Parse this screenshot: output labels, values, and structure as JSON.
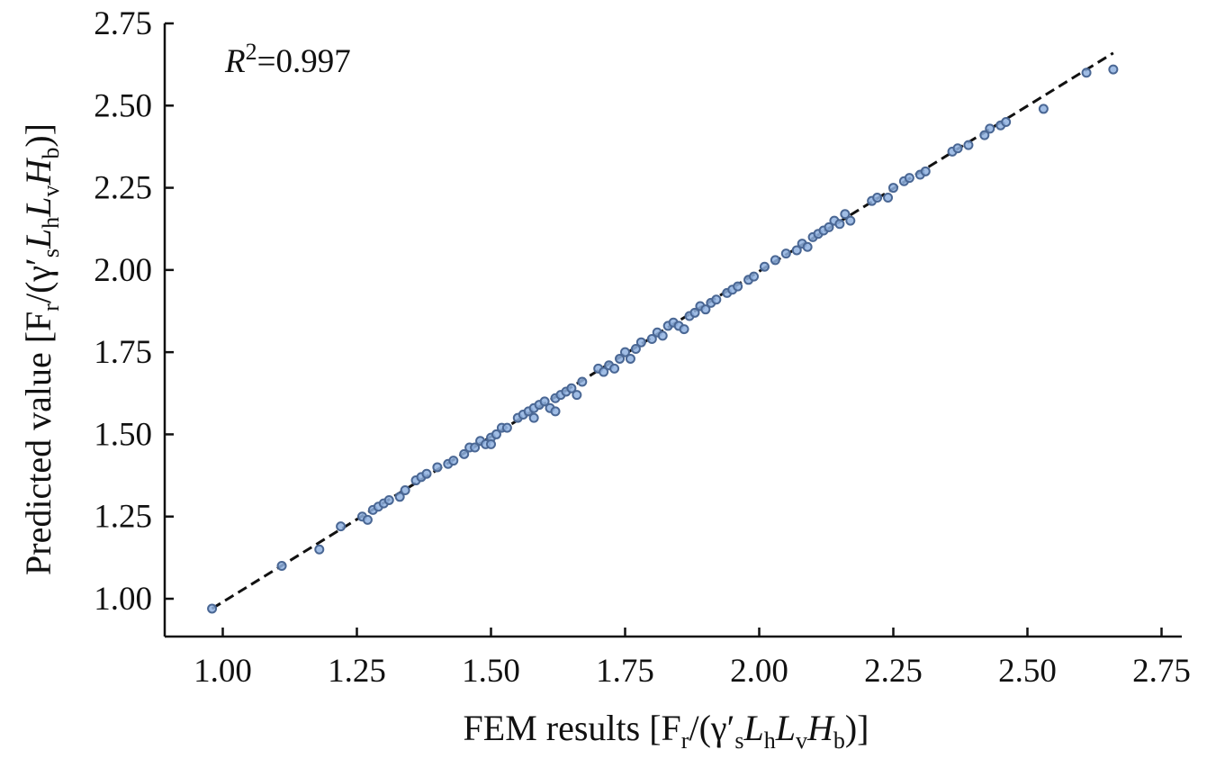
{
  "chart_data": {
    "type": "scatter",
    "title": "",
    "annotation": {
      "prefix": "R",
      "sup": "2",
      "text": "=0.997"
    },
    "xlabel": {
      "pre": "FEM results [F",
      "s1": "r",
      "mid1": "/(γ′",
      "s2": "s",
      "mid2": "L",
      "s3": "h",
      "mid3": "L",
      "s4": "v",
      "mid4": "H",
      "s5": "b",
      "post": ")]"
    },
    "ylabel": {
      "pre": "Predicted value [F",
      "s1": "r",
      "mid1": "/(γ′",
      "s2": "s",
      "mid2": "L",
      "s3": "h",
      "mid3": "L",
      "s4": "v",
      "mid4": "H",
      "s5": "b",
      "post": ")]"
    },
    "xlim": [
      0.9,
      2.75
    ],
    "ylim": [
      0.9,
      2.75
    ],
    "xticks": [
      "1.00",
      "1.25",
      "1.50",
      "1.75",
      "2.00",
      "2.25",
      "2.50",
      "2.75"
    ],
    "yticks": [
      "1.00",
      "1.25",
      "1.50",
      "1.75",
      "2.00",
      "2.25",
      "2.50",
      "2.75"
    ],
    "grid": false,
    "fit_line": {
      "style": "dashed",
      "x": [
        0.98,
        2.66
      ],
      "y": [
        0.97,
        2.66
      ]
    },
    "colors": {
      "point_fill": "#8fb2e0",
      "point_edge": "#4a6794",
      "line": "#111111"
    },
    "points": [
      [
        0.98,
        0.97
      ],
      [
        1.11,
        1.1
      ],
      [
        1.18,
        1.15
      ],
      [
        1.22,
        1.22
      ],
      [
        1.26,
        1.25
      ],
      [
        1.27,
        1.24
      ],
      [
        1.28,
        1.27
      ],
      [
        1.29,
        1.28
      ],
      [
        1.3,
        1.29
      ],
      [
        1.31,
        1.3
      ],
      [
        1.33,
        1.31
      ],
      [
        1.34,
        1.33
      ],
      [
        1.36,
        1.36
      ],
      [
        1.37,
        1.37
      ],
      [
        1.38,
        1.38
      ],
      [
        1.4,
        1.4
      ],
      [
        1.42,
        1.41
      ],
      [
        1.43,
        1.42
      ],
      [
        1.45,
        1.44
      ],
      [
        1.46,
        1.46
      ],
      [
        1.47,
        1.46
      ],
      [
        1.48,
        1.48
      ],
      [
        1.49,
        1.47
      ],
      [
        1.5,
        1.49
      ],
      [
        1.5,
        1.47
      ],
      [
        1.51,
        1.5
      ],
      [
        1.52,
        1.52
      ],
      [
        1.53,
        1.52
      ],
      [
        1.55,
        1.55
      ],
      [
        1.56,
        1.56
      ],
      [
        1.57,
        1.57
      ],
      [
        1.58,
        1.55
      ],
      [
        1.58,
        1.58
      ],
      [
        1.59,
        1.59
      ],
      [
        1.6,
        1.6
      ],
      [
        1.61,
        1.58
      ],
      [
        1.62,
        1.61
      ],
      [
        1.62,
        1.57
      ],
      [
        1.63,
        1.62
      ],
      [
        1.64,
        1.63
      ],
      [
        1.65,
        1.64
      ],
      [
        1.66,
        1.62
      ],
      [
        1.67,
        1.66
      ],
      [
        1.7,
        1.7
      ],
      [
        1.71,
        1.69
      ],
      [
        1.72,
        1.71
      ],
      [
        1.73,
        1.7
      ],
      [
        1.74,
        1.73
      ],
      [
        1.75,
        1.75
      ],
      [
        1.76,
        1.73
      ],
      [
        1.77,
        1.76
      ],
      [
        1.78,
        1.78
      ],
      [
        1.8,
        1.79
      ],
      [
        1.81,
        1.81
      ],
      [
        1.82,
        1.8
      ],
      [
        1.83,
        1.83
      ],
      [
        1.84,
        1.84
      ],
      [
        1.85,
        1.83
      ],
      [
        1.86,
        1.82
      ],
      [
        1.87,
        1.86
      ],
      [
        1.88,
        1.87
      ],
      [
        1.89,
        1.89
      ],
      [
        1.9,
        1.88
      ],
      [
        1.91,
        1.9
      ],
      [
        1.92,
        1.91
      ],
      [
        1.94,
        1.93
      ],
      [
        1.95,
        1.94
      ],
      [
        1.96,
        1.95
      ],
      [
        1.98,
        1.97
      ],
      [
        1.99,
        1.98
      ],
      [
        2.01,
        2.01
      ],
      [
        2.03,
        2.03
      ],
      [
        2.05,
        2.05
      ],
      [
        2.07,
        2.06
      ],
      [
        2.08,
        2.08
      ],
      [
        2.09,
        2.07
      ],
      [
        2.1,
        2.1
      ],
      [
        2.11,
        2.11
      ],
      [
        2.12,
        2.12
      ],
      [
        2.13,
        2.13
      ],
      [
        2.14,
        2.15
      ],
      [
        2.15,
        2.14
      ],
      [
        2.16,
        2.17
      ],
      [
        2.17,
        2.15
      ],
      [
        2.21,
        2.21
      ],
      [
        2.22,
        2.22
      ],
      [
        2.24,
        2.22
      ],
      [
        2.25,
        2.25
      ],
      [
        2.27,
        2.27
      ],
      [
        2.28,
        2.28
      ],
      [
        2.3,
        2.29
      ],
      [
        2.31,
        2.3
      ],
      [
        2.36,
        2.36
      ],
      [
        2.37,
        2.37
      ],
      [
        2.39,
        2.38
      ],
      [
        2.42,
        2.41
      ],
      [
        2.43,
        2.43
      ],
      [
        2.45,
        2.44
      ],
      [
        2.46,
        2.45
      ],
      [
        2.53,
        2.49
      ],
      [
        2.61,
        2.6
      ],
      [
        2.66,
        2.61
      ]
    ]
  }
}
